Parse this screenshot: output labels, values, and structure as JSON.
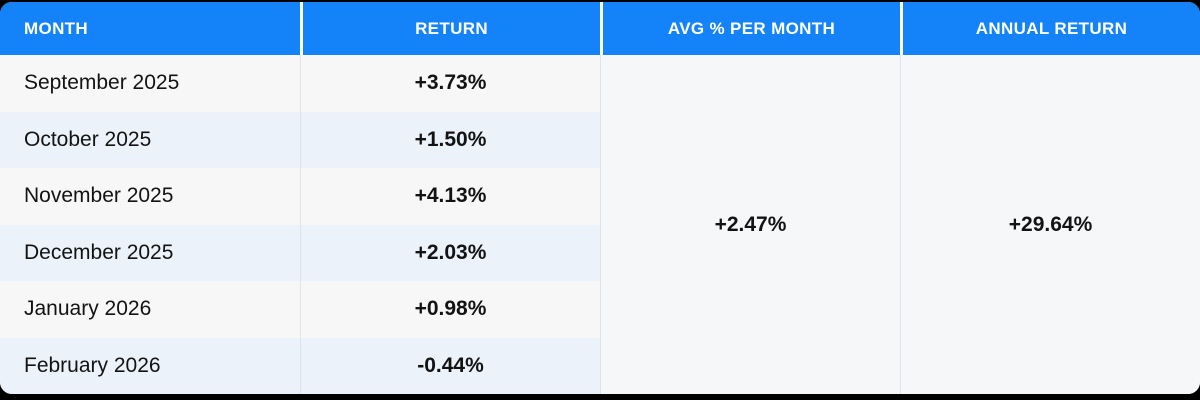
{
  "table": {
    "columns": [
      {
        "label": "MONTH"
      },
      {
        "label": "RETURN"
      },
      {
        "label": "AVG % PER MONTH"
      },
      {
        "label": "ANNUAL RETURN"
      }
    ],
    "rows": [
      {
        "month": "September 2025",
        "return": "+3.73%"
      },
      {
        "month": "October 2025",
        "return": "+1.50%"
      },
      {
        "month": "November 2025",
        "return": "+4.13%"
      },
      {
        "month": "December 2025",
        "return": "+2.03%"
      },
      {
        "month": "January 2026",
        "return": "+0.98%"
      },
      {
        "month": "February 2026",
        "return": "-0.44%"
      }
    ],
    "avg_per_month": "+2.47%",
    "annual_return": "+29.64%"
  },
  "colors": {
    "page_background": "#000000",
    "header_background": "#1482f8",
    "header_text": "#ffffff",
    "row_odd_background": "#f7f7f8",
    "row_even_background": "#ecf2f9",
    "merged_cell_background": "#f6f7f9",
    "divider": "#dce4ef",
    "body_text": "#131313"
  }
}
